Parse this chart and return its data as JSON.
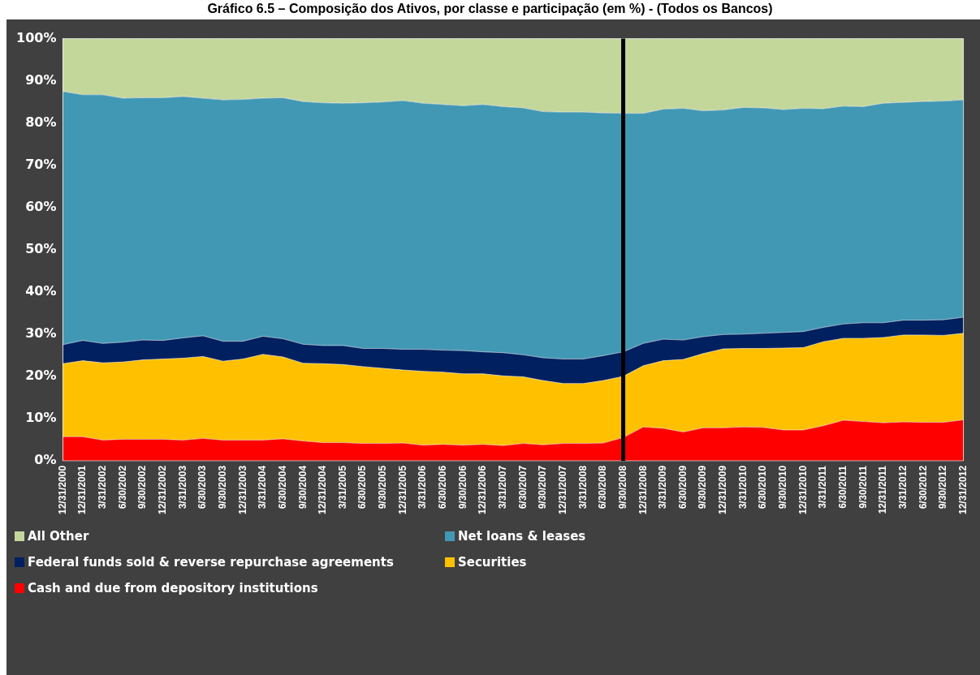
{
  "chart_data": {
    "type": "area",
    "title": "Gráfico 6.5 – Composição dos Ativos, por classe e participação (em %) - (Todos os Bancos)",
    "categories": [
      "12/31/2000",
      "12/31/2001",
      "3/31/2002",
      "6/30/2002",
      "9/30/2002",
      "12/31/2002",
      "3/31/2003",
      "6/30/2003",
      "9/30/2003",
      "12/31/2003",
      "3/31/2004",
      "6/30/2004",
      "9/30/2004",
      "12/31/2004",
      "3/31/2005",
      "6/30/2005",
      "9/30/2005",
      "12/31/2005",
      "3/31/2006",
      "6/30/2006",
      "9/30/2006",
      "12/31/2006",
      "3/31/2007",
      "6/30/2007",
      "9/30/2007",
      "12/31/2007",
      "3/31/2008",
      "6/30/2008",
      "9/30/2008",
      "12/31/2008",
      "3/31/2009",
      "6/30/2009",
      "9/30/2009",
      "12/31/2009",
      "3/31/2010",
      "6/30/2010",
      "9/30/2010",
      "12/31/2010",
      "3/31/2011",
      "6/30/2011",
      "9/30/2011",
      "12/31/2011",
      "3/31/2012",
      "6/30/2012",
      "9/30/2012",
      "12/31/2012"
    ],
    "series": [
      {
        "name": "Cash and due from depository institutions",
        "color": "#ff0000",
        "values": [
          5.7,
          5.7,
          4.9,
          5.1,
          5.1,
          5.1,
          4.9,
          5.3,
          4.9,
          4.9,
          4.9,
          5.2,
          4.7,
          4.3,
          4.3,
          4.1,
          4.1,
          4.2,
          3.7,
          3.9,
          3.7,
          3.9,
          3.6,
          4.1,
          3.8,
          4.1,
          4.1,
          4.2,
          5.5,
          8.0,
          7.7,
          6.8,
          7.8,
          7.8,
          8.0,
          7.9,
          7.3,
          7.3,
          8.3,
          9.6,
          9.3,
          9.0,
          9.2,
          9.1,
          9.1,
          9.7
        ]
      },
      {
        "name": "Securities",
        "color": "#ffc000",
        "values": [
          17.3,
          18.0,
          18.3,
          18.3,
          18.8,
          19.0,
          19.4,
          19.4,
          18.7,
          19.2,
          20.3,
          19.4,
          18.4,
          18.7,
          18.5,
          18.2,
          17.8,
          17.3,
          17.5,
          17.1,
          16.9,
          16.7,
          16.5,
          15.8,
          15.2,
          14.2,
          14.2,
          14.8,
          14.5,
          14.5,
          16.0,
          17.2,
          17.6,
          18.7,
          18.6,
          18.7,
          19.4,
          19.5,
          19.9,
          19.4,
          19.7,
          20.2,
          20.6,
          20.7,
          20.6,
          20.5
        ]
      },
      {
        "name": "Federal funds sold & reverse repurchase agreements",
        "color": "#002060",
        "values": [
          4.5,
          4.8,
          4.6,
          4.7,
          4.7,
          4.4,
          4.8,
          4.9,
          4.7,
          4.2,
          4.3,
          4.3,
          4.5,
          4.3,
          4.5,
          4.3,
          4.7,
          4.9,
          5.2,
          5.2,
          5.5,
          5.2,
          5.5,
          5.2,
          5.4,
          5.8,
          5.8,
          5.9,
          5.8,
          5.3,
          5.1,
          4.6,
          4.0,
          3.4,
          3.4,
          3.6,
          3.7,
          3.8,
          3.4,
          3.4,
          3.7,
          3.5,
          3.5,
          3.5,
          3.7,
          3.8
        ]
      },
      {
        "name": "Net loans & leases",
        "color": "#4198b5",
        "values": [
          60.0,
          58.2,
          58.9,
          57.8,
          57.4,
          57.5,
          57.2,
          56.3,
          57.2,
          57.3,
          56.4,
          57.1,
          57.5,
          57.5,
          57.4,
          58.2,
          58.4,
          58.9,
          58.3,
          58.2,
          58.0,
          58.6,
          58.3,
          58.5,
          58.3,
          58.5,
          58.5,
          57.5,
          56.5,
          54.5,
          54.5,
          54.9,
          53.5,
          53.2,
          53.7,
          53.4,
          52.8,
          52.9,
          51.8,
          51.6,
          51.2,
          52.0,
          51.6,
          51.8,
          51.8,
          51.5
        ]
      },
      {
        "name": "All Other",
        "color": "#c4d79b",
        "values": [
          12.5,
          13.3,
          13.3,
          14.1,
          14.0,
          14.0,
          13.7,
          14.1,
          14.5,
          14.4,
          14.1,
          14.0,
          14.9,
          15.2,
          15.3,
          15.2,
          15.0,
          14.7,
          15.3,
          15.6,
          15.9,
          15.6,
          16.1,
          16.4,
          17.3,
          17.4,
          17.4,
          17.6,
          17.7,
          17.7,
          16.7,
          16.5,
          17.1,
          16.9,
          16.3,
          16.4,
          16.8,
          16.5,
          16.6,
          16.0,
          16.1,
          15.3,
          15.1,
          14.9,
          14.8,
          14.5
        ]
      }
    ],
    "stacked": true,
    "ylim": [
      0,
      100
    ],
    "yticks": [
      {
        "value": 0,
        "label": "0%"
      },
      {
        "value": 10,
        "label": "10%"
      },
      {
        "value": 20,
        "label": "20%"
      },
      {
        "value": 30,
        "label": "30%"
      },
      {
        "value": 40,
        "label": "40%"
      },
      {
        "value": 50,
        "label": "50%"
      },
      {
        "value": 60,
        "label": "60%"
      },
      {
        "value": 70,
        "label": "70%"
      },
      {
        "value": 80,
        "label": "80%"
      },
      {
        "value": 90,
        "label": "90%"
      },
      {
        "value": 100,
        "label": "100%"
      }
    ],
    "grid": "x",
    "legend": "bottom",
    "ref_lines": [
      {
        "axis": "x",
        "value": "9/30/2008",
        "color": "#000000"
      }
    ]
  }
}
